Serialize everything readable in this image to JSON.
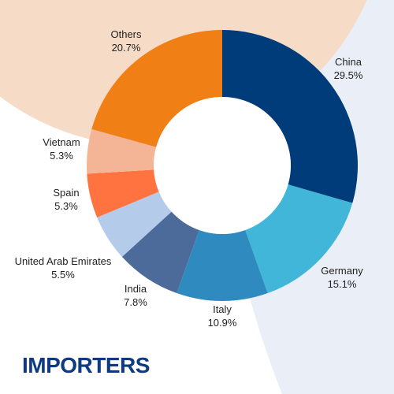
{
  "title": "IMPORTERS",
  "colors": {
    "title": "#0d3a80",
    "background_peach": "#f6dcc7",
    "background_blue": "#e9eef7"
  },
  "chart_data": {
    "type": "pie",
    "donut": true,
    "title": "IMPORTERS",
    "unit": "%",
    "slices": [
      {
        "label": "China",
        "value": 29.5,
        "value_label": "29.5%",
        "color": "#003b7a"
      },
      {
        "label": "Germany",
        "value": 15.1,
        "value_label": "15.1%",
        "color": "#41b6d8"
      },
      {
        "label": "Italy",
        "value": 10.9,
        "value_label": "10.9%",
        "color": "#2f8bbf"
      },
      {
        "label": "India",
        "value": 7.8,
        "value_label": "7.8%",
        "color": "#4c6b9a"
      },
      {
        "label": "United Arab Emirates",
        "value": 5.5,
        "value_label": "5.5%",
        "color": "#b4cce9"
      },
      {
        "label": "Spain",
        "value": 5.3,
        "value_label": "5.3%",
        "color": "#ff7341"
      },
      {
        "label": "Vietnam",
        "value": 5.3,
        "value_label": "5.3%",
        "color": "#f4b597"
      },
      {
        "label": "Others",
        "value": 20.7,
        "value_label": "20.7%",
        "color": "#f07f15"
      }
    ]
  }
}
